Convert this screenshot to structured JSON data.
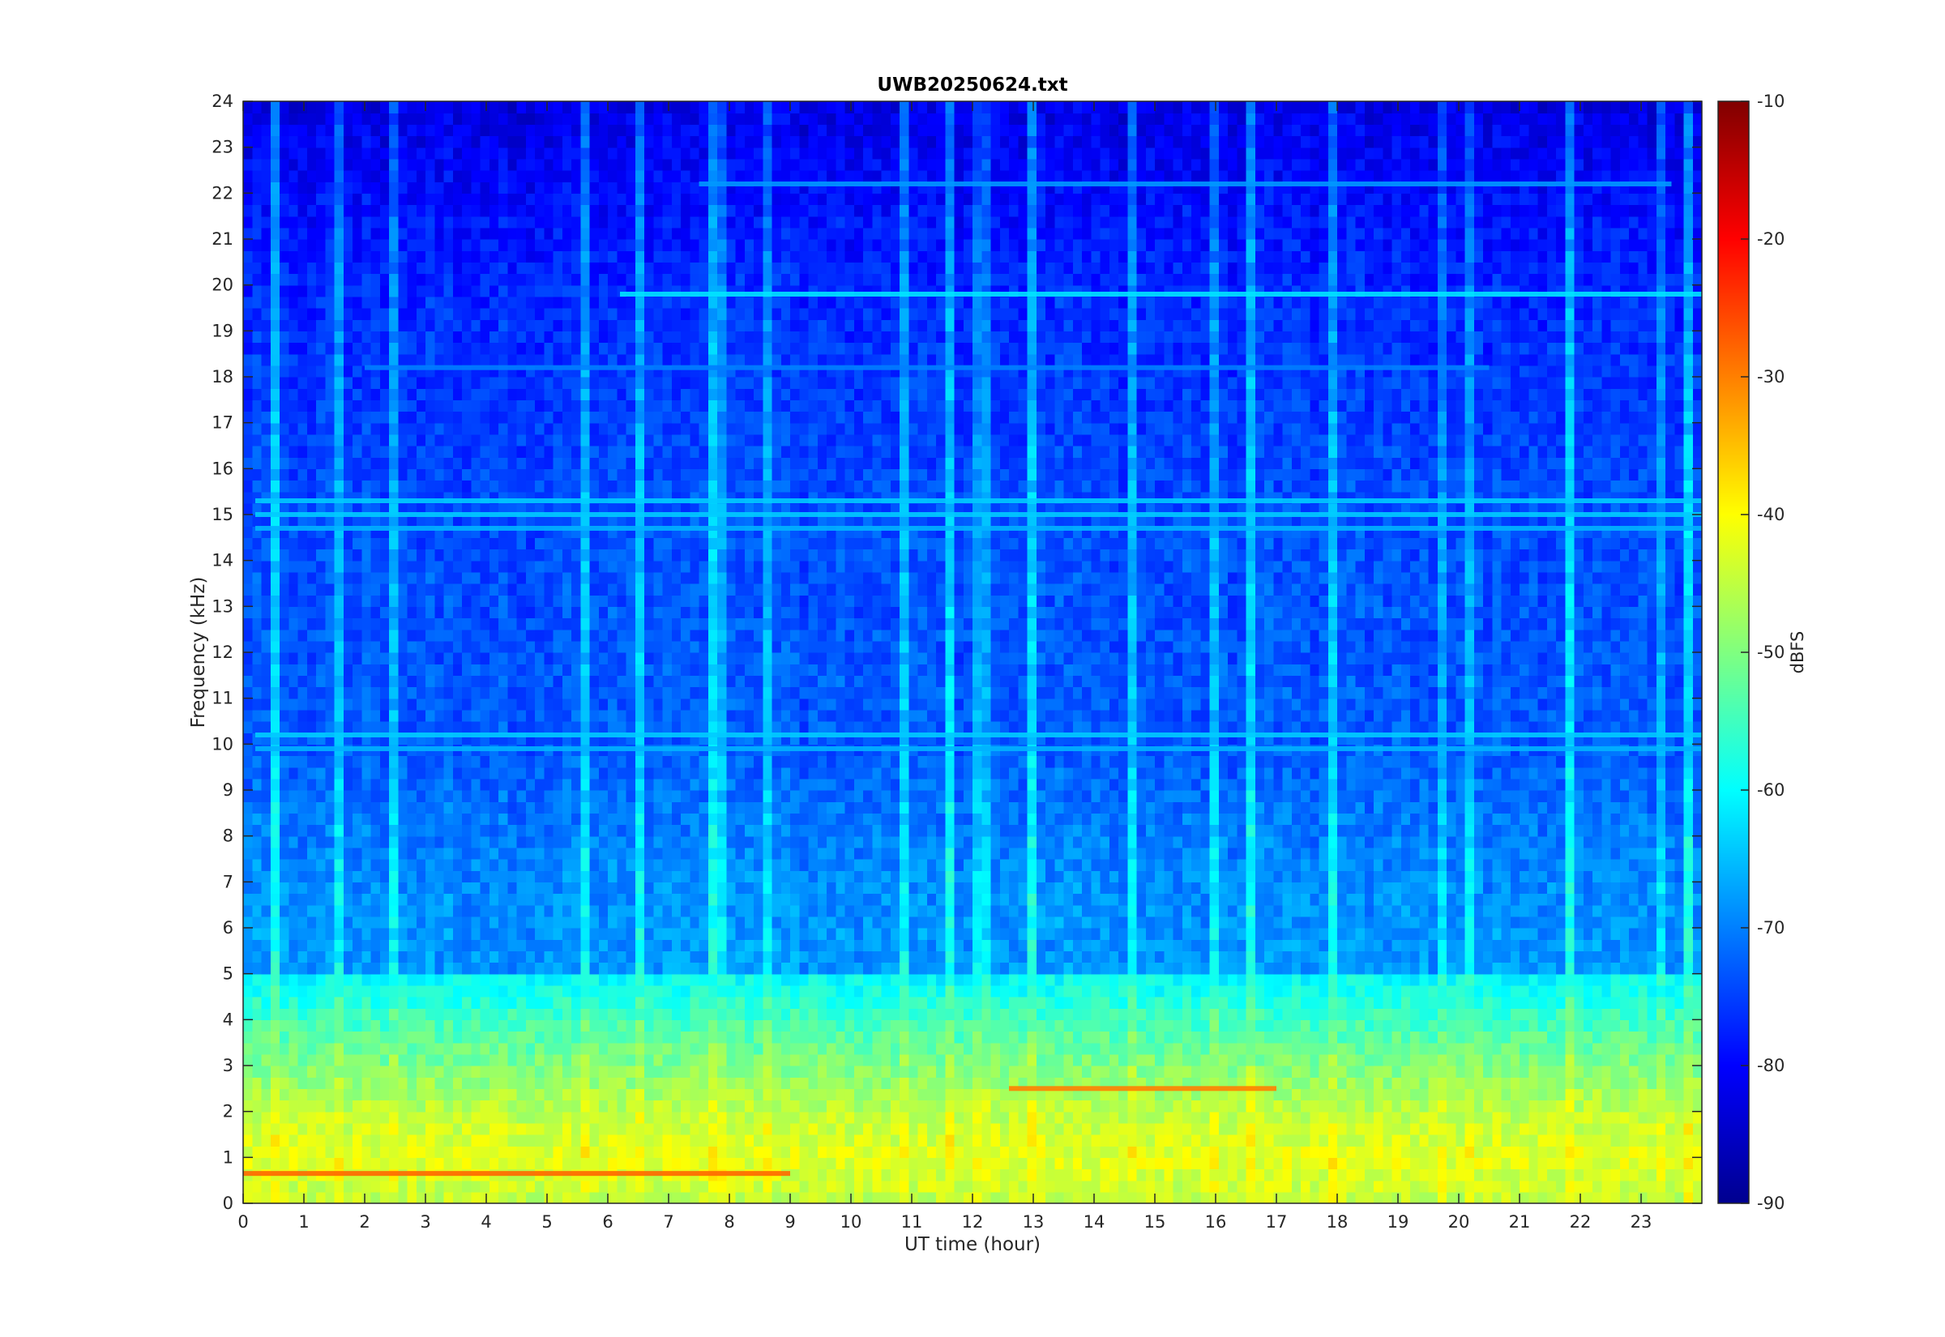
{
  "chart_data": {
    "type": "heatmap",
    "title": "UWB20250624.txt",
    "xlabel": "UT time (hour)",
    "ylabel": "Frequency (kHz)",
    "xlim": [
      0,
      24
    ],
    "ylim": [
      0,
      24
    ],
    "x_ticks": [
      "0",
      "1",
      "2",
      "3",
      "4",
      "5",
      "6",
      "7",
      "8",
      "9",
      "10",
      "11",
      "12",
      "13",
      "14",
      "15",
      "16",
      "17",
      "18",
      "19",
      "20",
      "21",
      "22",
      "23"
    ],
    "y_ticks": [
      "0",
      "1",
      "2",
      "3",
      "4",
      "5",
      "6",
      "7",
      "8",
      "9",
      "10",
      "11",
      "12",
      "13",
      "14",
      "15",
      "16",
      "17",
      "18",
      "19",
      "20",
      "21",
      "22",
      "23",
      "24"
    ],
    "colorbar": {
      "label": "dBFS",
      "range": [
        -90,
        -10
      ],
      "ticks": [
        "-10",
        "-20",
        "-30",
        "-40",
        "-50",
        "-60",
        "-70",
        "-80",
        "-90"
      ],
      "colormap": "jet"
    },
    "background_level_by_frequency_khz": [
      {
        "f": 0.0,
        "dbfs": -45
      },
      {
        "f": 1.0,
        "dbfs": -42
      },
      {
        "f": 2.0,
        "dbfs": -45
      },
      {
        "f": 3.0,
        "dbfs": -50
      },
      {
        "f": 4.0,
        "dbfs": -55
      },
      {
        "f": 4.9,
        "dbfs": -60
      },
      {
        "f": 5.1,
        "dbfs": -68
      },
      {
        "f": 7.0,
        "dbfs": -69
      },
      {
        "f": 10.0,
        "dbfs": -73
      },
      {
        "f": 15.0,
        "dbfs": -74
      },
      {
        "f": 20.0,
        "dbfs": -77
      },
      {
        "f": 24.0,
        "dbfs": -82
      }
    ],
    "narrowband_lines": [
      {
        "freq_khz": 19.8,
        "start_h": 6.2,
        "end_h": 24.0,
        "dbfs": -62
      },
      {
        "freq_khz": 22.2,
        "start_h": 7.5,
        "end_h": 23.5,
        "dbfs": -68
      },
      {
        "freq_khz": 18.2,
        "start_h": 2.0,
        "end_h": 20.5,
        "dbfs": -70
      },
      {
        "freq_khz": 15.3,
        "start_h": 0.2,
        "end_h": 24.0,
        "dbfs": -64
      },
      {
        "freq_khz": 15.0,
        "start_h": 0.2,
        "end_h": 24.0,
        "dbfs": -64
      },
      {
        "freq_khz": 14.7,
        "start_h": 0.2,
        "end_h": 24.0,
        "dbfs": -66
      },
      {
        "freq_khz": 10.2,
        "start_h": 0.2,
        "end_h": 24.0,
        "dbfs": -64
      },
      {
        "freq_khz": 9.9,
        "start_h": 0.2,
        "end_h": 24.0,
        "dbfs": -66
      },
      {
        "freq_khz": 2.5,
        "start_h": 12.6,
        "end_h": 17.0,
        "dbfs": -30
      },
      {
        "freq_khz": 0.65,
        "start_h": 0.0,
        "end_h": 9.0,
        "dbfs": -28
      }
    ]
  }
}
